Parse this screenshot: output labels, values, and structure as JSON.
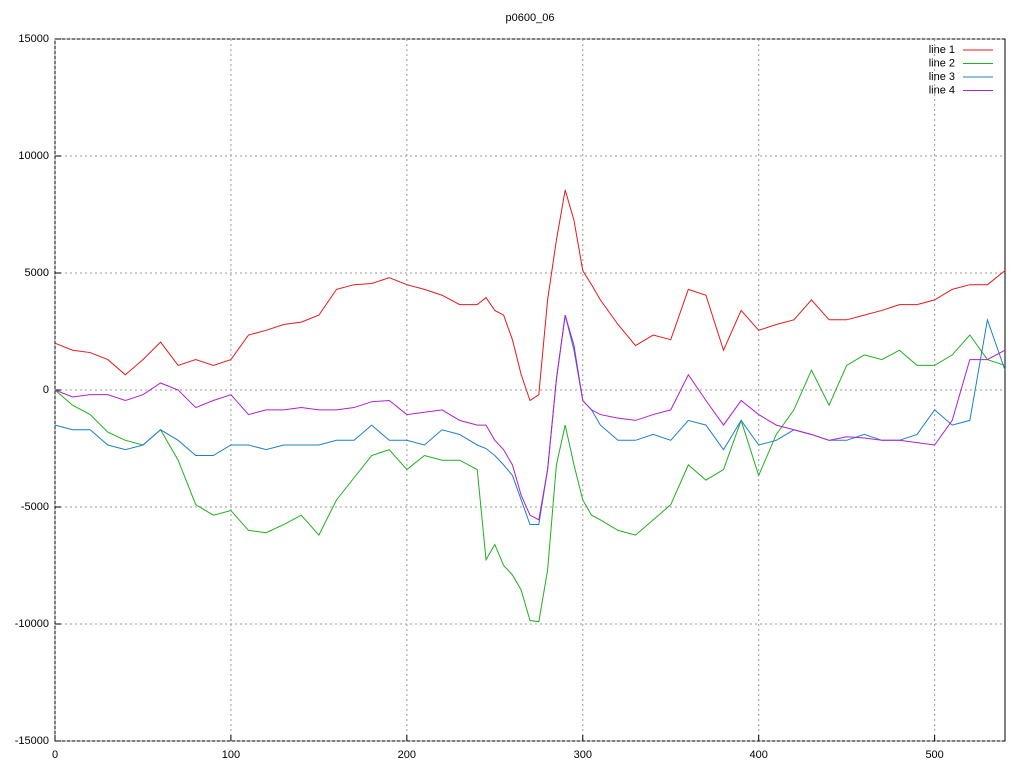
{
  "chart_data": {
    "type": "line",
    "title": "p0600_06",
    "x": [
      0,
      10,
      20,
      30,
      40,
      50,
      60,
      70,
      80,
      90,
      100,
      110,
      120,
      130,
      140,
      150,
      160,
      170,
      180,
      190,
      200,
      210,
      220,
      230,
      240,
      245,
      250,
      255,
      260,
      265,
      270,
      275,
      280,
      285,
      290,
      295,
      300,
      305,
      310,
      320,
      330,
      340,
      350,
      360,
      370,
      380,
      390,
      400,
      410,
      420,
      430,
      440,
      450,
      460,
      470,
      480,
      490,
      500,
      510,
      520,
      530,
      540
    ],
    "series": [
      {
        "name": "line 1",
        "color": "#e41a1c",
        "values": [
          2000,
          1700,
          1600,
          1300,
          650,
          1300,
          2050,
          1050,
          1300,
          1050,
          1300,
          2350,
          2550,
          2800,
          2900,
          3200,
          4300,
          4500,
          4550,
          4800,
          4500,
          4300,
          4050,
          3650,
          3650,
          3950,
          3400,
          3200,
          2150,
          650,
          -450,
          -200,
          3850,
          6400,
          8550,
          7250,
          5100,
          4500,
          3850,
          2800,
          1900,
          2350,
          2150,
          4300,
          4050,
          1700,
          3400,
          2550,
          2800,
          3000,
          3850,
          3000,
          3000,
          3200,
          3400,
          3650,
          3650,
          3850,
          4300,
          4500,
          4500,
          5100
        ]
      },
      {
        "name": "line 2",
        "color": "#1fb01f",
        "values": [
          0,
          -650,
          -1050,
          -1800,
          -2150,
          -2350,
          -1700,
          -3000,
          -4900,
          -5350,
          -5150,
          -6000,
          -6100,
          -5750,
          -5350,
          -6200,
          -4700,
          -3750,
          -2800,
          -2550,
          -3400,
          -2800,
          -3000,
          -3000,
          -3400,
          -7250,
          -6600,
          -7500,
          -7900,
          -8550,
          -9850,
          -9900,
          -7700,
          -3200,
          -1500,
          -3200,
          -4700,
          -5350,
          -5550,
          -6000,
          -6200,
          -5550,
          -4900,
          -3200,
          -3850,
          -3400,
          -1300,
          -3650,
          -1900,
          -850,
          850,
          -650,
          1050,
          1500,
          1300,
          1700,
          1050,
          1050,
          1500,
          2350,
          1300,
          1050
        ]
      },
      {
        "name": "line 3",
        "color": "#1e7fc8",
        "values": [
          -1500,
          -1700,
          -1700,
          -2350,
          -2550,
          -2350,
          -1700,
          -2150,
          -2800,
          -2800,
          -2350,
          -2350,
          -2550,
          -2350,
          -2350,
          -2350,
          -2150,
          -2150,
          -1500,
          -2150,
          -2150,
          -2350,
          -1700,
          -1900,
          -2350,
          -2500,
          -2800,
          -3200,
          -3650,
          -4700,
          -5750,
          -5750,
          -3400,
          450,
          3200,
          1700,
          -450,
          -850,
          -1500,
          -2150,
          -2150,
          -1900,
          -2150,
          -1300,
          -1500,
          -2550,
          -1300,
          -2350,
          -2150,
          -1700,
          -1900,
          -2150,
          -2150,
          -1900,
          -2150,
          -2150,
          -1900,
          -850,
          -1500,
          -1300,
          3000,
          850
        ]
      },
      {
        "name": "line 4",
        "color": "#b020d0",
        "values": [
          0,
          -300,
          -200,
          -200,
          -450,
          -200,
          300,
          0,
          -750,
          -450,
          -200,
          -1050,
          -850,
          -850,
          -750,
          -850,
          -850,
          -750,
          -500,
          -450,
          -1050,
          -950,
          -850,
          -1300,
          -1500,
          -1500,
          -2150,
          -2550,
          -3200,
          -4500,
          -5350,
          -5550,
          -3400,
          450,
          3200,
          1900,
          -450,
          -850,
          -1050,
          -1200,
          -1300,
          -1050,
          -850,
          650,
          -450,
          -1500,
          -450,
          -1050,
          -1500,
          -1700,
          -1900,
          -2150,
          -2000,
          -2050,
          -2150,
          -2150,
          -2250,
          -2350,
          -1300,
          1300,
          1300,
          1700
        ]
      }
    ],
    "xlim": [
      0,
      540
    ],
    "xticks": [
      0,
      100,
      200,
      300,
      400,
      500
    ],
    "ylim": [
      -15000,
      15000
    ],
    "yticks": [
      -15000,
      -10000,
      -5000,
      0,
      5000,
      10000,
      15000
    ],
    "grid": true,
    "legend": "top-right"
  }
}
